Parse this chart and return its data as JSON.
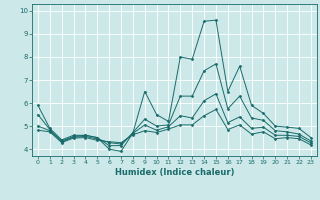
{
  "xlabel": "Humidex (Indice chaleur)",
  "xlim": [
    -0.5,
    23.5
  ],
  "ylim": [
    3.7,
    10.3
  ],
  "yticks": [
    4,
    5,
    6,
    7,
    8,
    9,
    10
  ],
  "xticks": [
    0,
    1,
    2,
    3,
    4,
    5,
    6,
    7,
    8,
    9,
    10,
    11,
    12,
    13,
    14,
    15,
    16,
    17,
    18,
    19,
    20,
    21,
    22,
    23
  ],
  "bg_color": "#cce8e8",
  "grid_color": "#ffffff",
  "line_color": "#1a6b6b",
  "series": {
    "main": [
      5.9,
      4.9,
      4.4,
      4.6,
      4.6,
      4.5,
      4.0,
      3.9,
      4.7,
      6.5,
      5.5,
      5.2,
      8.0,
      7.9,
      9.55,
      9.6,
      6.5,
      7.6,
      5.9,
      5.55,
      5.0,
      4.95,
      4.9,
      4.5
    ],
    "p75": [
      5.5,
      4.85,
      4.35,
      4.55,
      4.6,
      4.5,
      4.15,
      4.15,
      4.72,
      5.3,
      5.0,
      5.05,
      6.3,
      6.3,
      7.4,
      7.7,
      5.75,
      6.3,
      5.35,
      5.25,
      4.8,
      4.75,
      4.65,
      4.35
    ],
    "median": [
      5.0,
      4.8,
      4.32,
      4.52,
      4.55,
      4.44,
      4.28,
      4.22,
      4.68,
      5.05,
      4.82,
      4.97,
      5.45,
      5.35,
      6.1,
      6.4,
      5.15,
      5.4,
      4.9,
      4.95,
      4.6,
      4.6,
      4.55,
      4.27
    ],
    "p25": [
      4.82,
      4.75,
      4.28,
      4.48,
      4.5,
      4.38,
      4.32,
      4.28,
      4.62,
      4.8,
      4.72,
      4.87,
      5.05,
      5.05,
      5.45,
      5.72,
      4.85,
      5.05,
      4.65,
      4.75,
      4.45,
      4.5,
      4.45,
      4.18
    ]
  }
}
